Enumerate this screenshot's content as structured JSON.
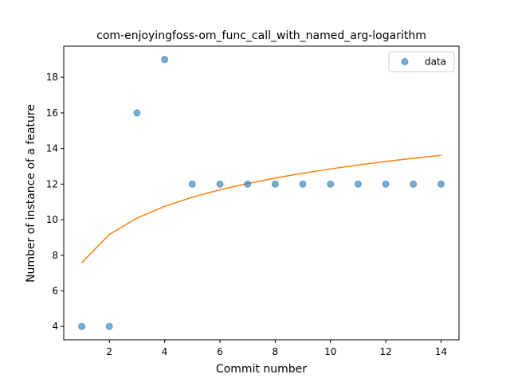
{
  "chart_data": {
    "type": "scatter",
    "title": "com-enjoyingfoss-om_func_call_with_named_arg-logarithm",
    "xlabel": "Commit number",
    "ylabel": "Number of instance of a feature",
    "xlim": [
      0.35,
      14.65
    ],
    "ylim": [
      3.25,
      19.75
    ],
    "xticks": [
      2,
      4,
      6,
      8,
      10,
      12,
      14
    ],
    "yticks": [
      4,
      6,
      8,
      10,
      12,
      14,
      16,
      18
    ],
    "grid": false,
    "legend_position": "top-right",
    "series": [
      {
        "name": "data",
        "kind": "scatter",
        "color": "#1f77b4",
        "x": [
          1,
          2,
          3,
          4,
          5,
          6,
          7,
          8,
          9,
          10,
          11,
          12,
          13,
          14
        ],
        "y": [
          4,
          4,
          16,
          19,
          12,
          12,
          12,
          12,
          12,
          12,
          12,
          12,
          12,
          12
        ]
      },
      {
        "kind": "line",
        "color": "#ff7f0e",
        "x": [
          1,
          2,
          3,
          4,
          5,
          6,
          7,
          8,
          9,
          10,
          11,
          12,
          13,
          14
        ],
        "y": [
          7.58,
          9.17,
          10.09,
          10.75,
          11.26,
          11.68,
          12.03,
          12.34,
          12.61,
          12.85,
          13.07,
          13.27,
          13.45,
          13.62
        ]
      }
    ]
  }
}
